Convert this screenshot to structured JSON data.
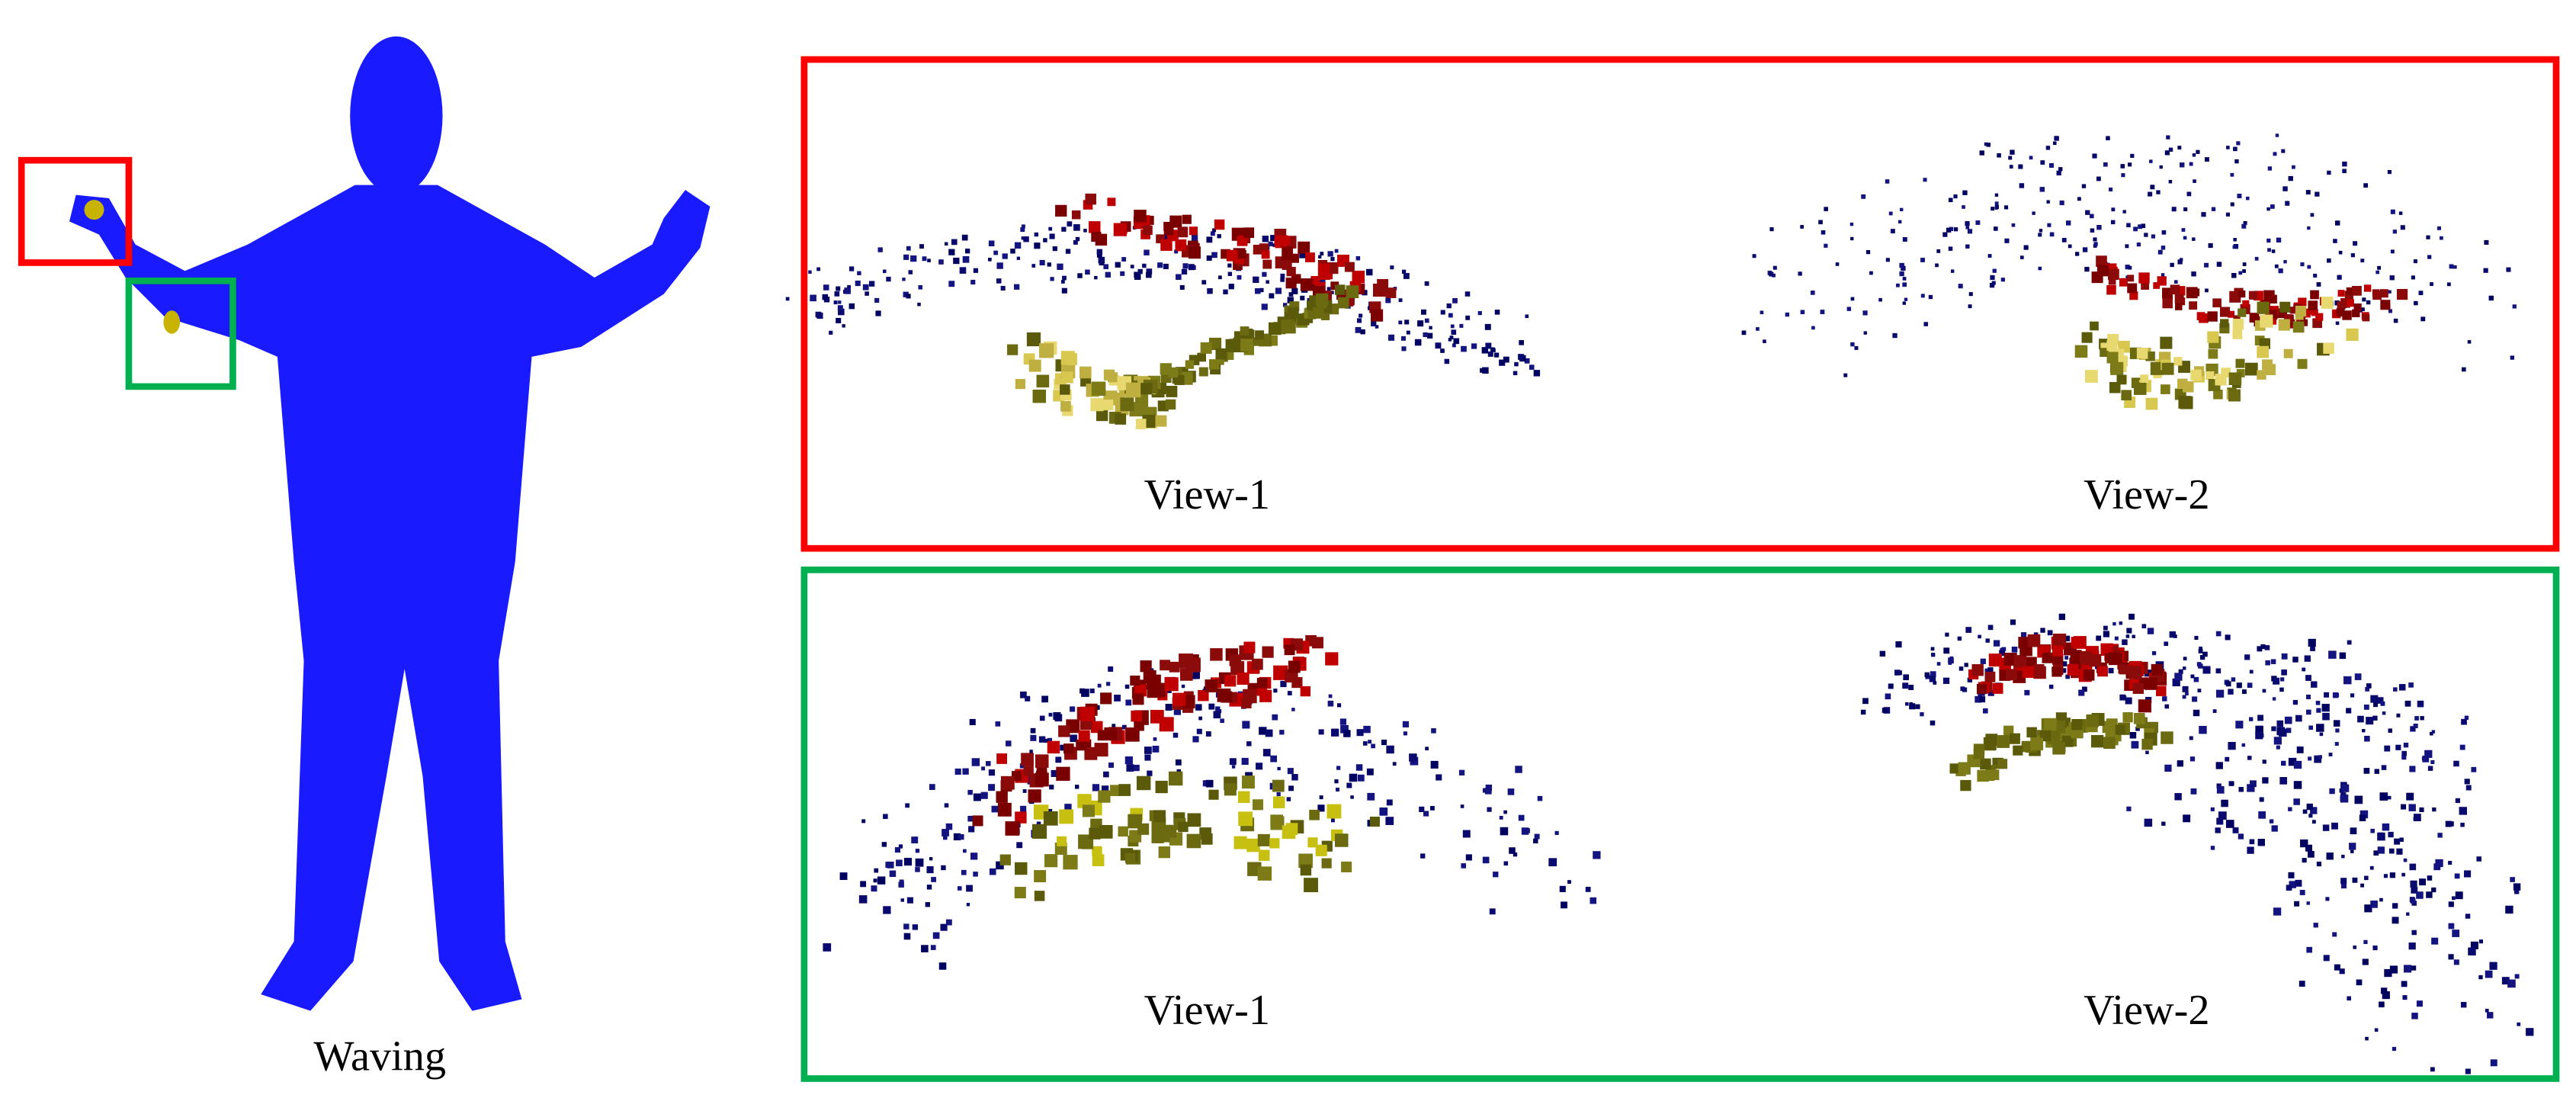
{
  "figure": {
    "subject_label": "Waving"
  },
  "panels": [
    {
      "views": [
        {
          "label": "View-1"
        },
        {
          "label": "View-2"
        }
      ]
    },
    {
      "views": [
        {
          "label": "View-1"
        },
        {
          "label": "View-2"
        }
      ]
    }
  ]
}
